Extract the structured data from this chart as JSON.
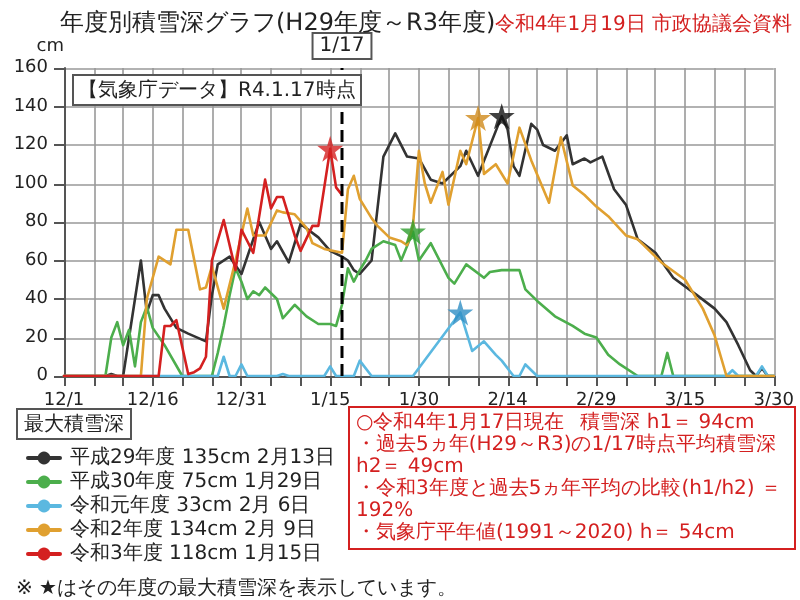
{
  "chart_data": {
    "type": "line",
    "title": "年度別積雪深グラフ(H29年度～R3年度)",
    "ylabel": "cm",
    "legend_title": "最大積雪深",
    "annotations": [
      "令和4年1月19日 市政協議会資料",
      "【気象庁データ】R4.1.17時点",
      "○令和4年1月17日現在",
      "積雪深 h1＝ 94cm",
      "・過去5ヵ年(H29～R3)の1/17時点平均積雪深 h2＝ 49cm",
      "・令和3年度と過去5ヵ年平均の比較(h1/h2) ＝ 192%",
      "・気象庁平年値(1991～2020) h＝ 54cm",
      "※ ★はその年度の最大積雪深を表示しています。"
    ],
    "xlim": [
      "2019-12-01",
      "2020-03-30"
    ],
    "xticks": [
      {
        "value": "2019-12-01",
        "label": "12/1"
      },
      {
        "value": "2019-12-06",
        "label": null
      },
      {
        "value": "2019-12-11",
        "label": null
      },
      {
        "value": "2019-12-16",
        "label": "12/16"
      },
      {
        "value": "2019-12-21",
        "label": null
      },
      {
        "value": "2019-12-26",
        "label": null
      },
      {
        "value": "2019-12-31",
        "label": "12/31"
      },
      {
        "value": "2020-01-05",
        "label": null
      },
      {
        "value": "2020-01-10",
        "label": null
      },
      {
        "value": "2020-01-15",
        "label": "1/15"
      },
      {
        "value": "2020-01-20",
        "label": null
      },
      {
        "value": "2020-01-25",
        "label": null
      },
      {
        "value": "2020-01-30",
        "label": "1/30"
      },
      {
        "value": "2020-02-04",
        "label": null
      },
      {
        "value": "2020-02-09",
        "label": null
      },
      {
        "value": "2020-02-14",
        "label": "2/14"
      },
      {
        "value": "2020-02-19",
        "label": null
      },
      {
        "value": "2020-02-24",
        "label": null
      },
      {
        "value": "2020-02-29",
        "label": "2/29"
      },
      {
        "value": "2020-03-05",
        "label": null
      },
      {
        "value": "2020-03-10",
        "label": null
      },
      {
        "value": "2020-03-15",
        "label": "3/15"
      },
      {
        "value": "2020-03-20",
        "label": null
      },
      {
        "value": "2020-03-25",
        "label": null
      },
      {
        "value": "2020-03-30",
        "label": "3/30"
      }
    ],
    "ylim": [
      0,
      160
    ],
    "yticks": [
      0,
      20,
      40,
      60,
      80,
      100,
      120,
      140,
      160
    ],
    "grid": true,
    "legend": "bottom left",
    "marker": "none",
    "line_style": "solid",
    "ref_lines": [
      {
        "axis": "x",
        "value": "2020-01-17",
        "label": "1/17",
        "line_style": "dashed",
        "color": "#000000"
      }
    ],
    "series": [
      {
        "name": "平成29年度 135cm 2月13日",
        "color": "#333333",
        "x": [
          "2019-12-01",
          "2019-12-08",
          "2019-12-09",
          "2019-12-10",
          "2019-12-11",
          "2019-12-14",
          "2019-12-15",
          "2019-12-16",
          "2019-12-17",
          "2019-12-18",
          "2019-12-20",
          "2019-12-22",
          "2019-12-25",
          "2019-12-26",
          "2019-12-27",
          "2019-12-29",
          "2019-12-31",
          "2020-01-03",
          "2020-01-05",
          "2020-01-06",
          "2020-01-08",
          "2020-01-10",
          "2020-01-13",
          "2020-01-15",
          "2020-01-17",
          "2020-01-18",
          "2020-01-19",
          "2020-01-20",
          "2020-01-22",
          "2020-01-24",
          "2020-01-26",
          "2020-01-28",
          "2020-01-30",
          "2020-02-01",
          "2020-02-03",
          "2020-02-06",
          "2020-02-07",
          "2020-02-09",
          "2020-02-13",
          "2020-02-14",
          "2020-02-15",
          "2020-02-16",
          "2020-02-18",
          "2020-02-19",
          "2020-02-20",
          "2020-02-22",
          "2020-02-24",
          "2020-02-25",
          "2020-02-27",
          "2020-02-28",
          "2020-03-01",
          "2020-03-03",
          "2020-03-05",
          "2020-03-07",
          "2020-03-10",
          "2020-03-13",
          "2020-03-17",
          "2020-03-20",
          "2020-03-22",
          "2020-03-24",
          "2020-03-26",
          "2020-03-27",
          "2020-03-28",
          "2020-03-29",
          "2020-03-30"
        ],
        "values": [
          0,
          0,
          1,
          0,
          0,
          60,
          33,
          42,
          42,
          35,
          25,
          22,
          18,
          42,
          58,
          62,
          53,
          80,
          66,
          70,
          59,
          79,
          72,
          65,
          62,
          60,
          55,
          53,
          60,
          114,
          126,
          114,
          113,
          102,
          100,
          109,
          117,
          104,
          135,
          128,
          109,
          104,
          131,
          128,
          120,
          117,
          125,
          110,
          113,
          111,
          114,
          97,
          89,
          71,
          64,
          51,
          42,
          35,
          28,
          16,
          3,
          0,
          4,
          0,
          0
        ]
      },
      {
        "name": "平成30年度 75cm 1月29日",
        "color": "#4cae4c",
        "x": [
          "2019-12-01",
          "2019-12-08",
          "2019-12-09",
          "2019-12-10",
          "2019-12-11",
          "2019-12-12",
          "2019-12-13",
          "2019-12-14",
          "2019-12-15",
          "2019-12-16",
          "2019-12-18",
          "2019-12-21",
          "2019-12-26",
          "2019-12-27",
          "2019-12-28",
          "2019-12-29",
          "2019-12-30",
          "2019-12-31",
          "2020-01-01",
          "2020-01-02",
          "2020-01-03",
          "2020-01-04",
          "2020-01-06",
          "2020-01-07",
          "2020-01-09",
          "2020-01-11",
          "2020-01-13",
          "2020-01-15",
          "2020-01-16",
          "2020-01-17",
          "2020-01-18",
          "2020-01-19",
          "2020-01-20",
          "2020-01-21",
          "2020-01-22",
          "2020-01-24",
          "2020-01-26",
          "2020-01-27",
          "2020-01-29",
          "2020-01-30",
          "2020-02-01",
          "2020-02-04",
          "2020-02-05",
          "2020-02-07",
          "2020-02-10",
          "2020-02-11",
          "2020-02-13",
          "2020-02-16",
          "2020-02-17",
          "2020-02-19",
          "2020-02-22",
          "2020-02-25",
          "2020-02-27",
          "2020-02-29",
          "2020-03-02",
          "2020-03-04",
          "2020-03-07",
          "2020-03-11",
          "2020-03-12",
          "2020-03-13",
          "2020-03-30"
        ],
        "values": [
          0,
          0,
          20,
          28,
          16,
          24,
          5,
          28,
          36,
          25,
          16,
          0,
          0,
          12,
          26,
          42,
          56,
          49,
          40,
          44,
          42,
          46,
          40,
          30,
          37,
          31,
          27,
          27,
          26,
          37,
          56,
          49,
          55,
          60,
          66,
          70,
          68,
          60,
          75,
          60,
          69,
          51,
          48,
          58,
          51,
          54,
          55,
          55,
          45,
          39,
          31,
          26,
          22,
          20,
          11,
          6,
          0,
          0,
          12,
          0,
          0
        ]
      },
      {
        "name": "令和元年度 33cm 2月 6日",
        "color": "#5bb8e0",
        "x": [
          "2019-12-01",
          "2019-12-27",
          "2019-12-28",
          "2019-12-29",
          "2019-12-30",
          "2019-12-31",
          "2020-01-01",
          "2020-01-06",
          "2020-01-07",
          "2020-01-08",
          "2020-01-14",
          "2020-01-15",
          "2020-01-16",
          "2020-01-19",
          "2020-01-20",
          "2020-01-22",
          "2020-01-29",
          "2020-02-06",
          "2020-02-08",
          "2020-02-10",
          "2020-02-12",
          "2020-02-13",
          "2020-02-15",
          "2020-02-16",
          "2020-02-17",
          "2020-02-19",
          "2020-03-22",
          "2020-03-23",
          "2020-03-24",
          "2020-03-27",
          "2020-03-28",
          "2020-03-29",
          "2020-03-30"
        ],
        "values": [
          0,
          0,
          10,
          0,
          0,
          6,
          0,
          0,
          1,
          0,
          0,
          5,
          0,
          0,
          8,
          0,
          0,
          33,
          13,
          18,
          11,
          8,
          0,
          0,
          6,
          0,
          0,
          3,
          0,
          0,
          5,
          0,
          0
        ]
      },
      {
        "name": "令和2年度 134cm 2月 9日",
        "color": "#e0a030",
        "x": [
          "2019-12-01",
          "2019-12-14",
          "2019-12-15",
          "2019-12-17",
          "2019-12-19",
          "2019-12-20",
          "2019-12-22",
          "2019-12-24",
          "2019-12-25",
          "2019-12-26",
          "2019-12-28",
          "2019-12-30",
          "2020-01-01",
          "2020-01-02",
          "2020-01-04",
          "2020-01-06",
          "2020-01-07",
          "2020-01-09",
          "2020-01-11",
          "2020-01-12",
          "2020-01-14",
          "2020-01-17",
          "2020-01-18",
          "2020-01-19",
          "2020-01-20",
          "2020-01-22",
          "2020-01-23",
          "2020-01-25",
          "2020-01-27",
          "2020-01-28",
          "2020-01-29",
          "2020-01-30",
          "2020-01-31",
          "2020-02-01",
          "2020-02-03",
          "2020-02-04",
          "2020-02-06",
          "2020-02-07",
          "2020-02-09",
          "2020-02-10",
          "2020-02-12",
          "2020-02-14",
          "2020-02-16",
          "2020-02-18",
          "2020-02-21",
          "2020-02-23",
          "2020-02-25",
          "2020-02-27",
          "2020-02-29",
          "2020-03-02",
          "2020-03-05",
          "2020-03-07",
          "2020-03-11",
          "2020-03-15",
          "2020-03-18",
          "2020-03-20",
          "2020-03-22",
          "2020-03-30"
        ],
        "values": [
          0,
          0,
          40,
          62,
          58,
          76,
          76,
          45,
          46,
          57,
          35,
          60,
          87,
          73,
          73,
          86,
          85,
          84,
          77,
          69,
          66,
          64,
          97,
          104,
          92,
          82,
          78,
          72,
          70,
          68,
          78,
          117,
          100,
          90,
          106,
          89,
          117,
          110,
          134,
          105,
          110,
          100,
          129,
          112,
          90,
          124,
          99,
          94,
          88,
          83,
          73,
          71,
          59,
          50,
          35,
          21,
          0,
          0
        ]
      },
      {
        "name": "令和3年度 118cm 1月15日",
        "color": "#d42020",
        "x": [
          "2019-12-01",
          "2019-12-17",
          "2019-12-18",
          "2019-12-19",
          "2019-12-20",
          "2019-12-22",
          "2019-12-23",
          "2019-12-24",
          "2019-12-25",
          "2019-12-26",
          "2019-12-28",
          "2019-12-30",
          "2019-12-31",
          "2020-01-01",
          "2020-01-02",
          "2020-01-04",
          "2020-01-05",
          "2020-01-06",
          "2020-01-07",
          "2020-01-09",
          "2020-01-10",
          "2020-01-12",
          "2020-01-13",
          "2020-01-15",
          "2020-01-16",
          "2020-01-17"
        ],
        "values": [
          0,
          0,
          26,
          26,
          29,
          1,
          2,
          4,
          10,
          60,
          81,
          55,
          76,
          70,
          64,
          102,
          87,
          93,
          93,
          73,
          65,
          78,
          78,
          118,
          98,
          94
        ]
      },
      {
        "type": "scatter",
        "marker": "star",
        "x": [
          "2020-02-13",
          "2020-01-29",
          "2020-02-06",
          "2020-02-09",
          "2020-01-15"
        ],
        "values": [
          135,
          75,
          33,
          134,
          118
        ],
        "colors": [
          "#111111",
          "#2e9e2e",
          "#2f8fc4",
          "#d08a1a",
          "#d42020"
        ]
      }
    ]
  }
}
